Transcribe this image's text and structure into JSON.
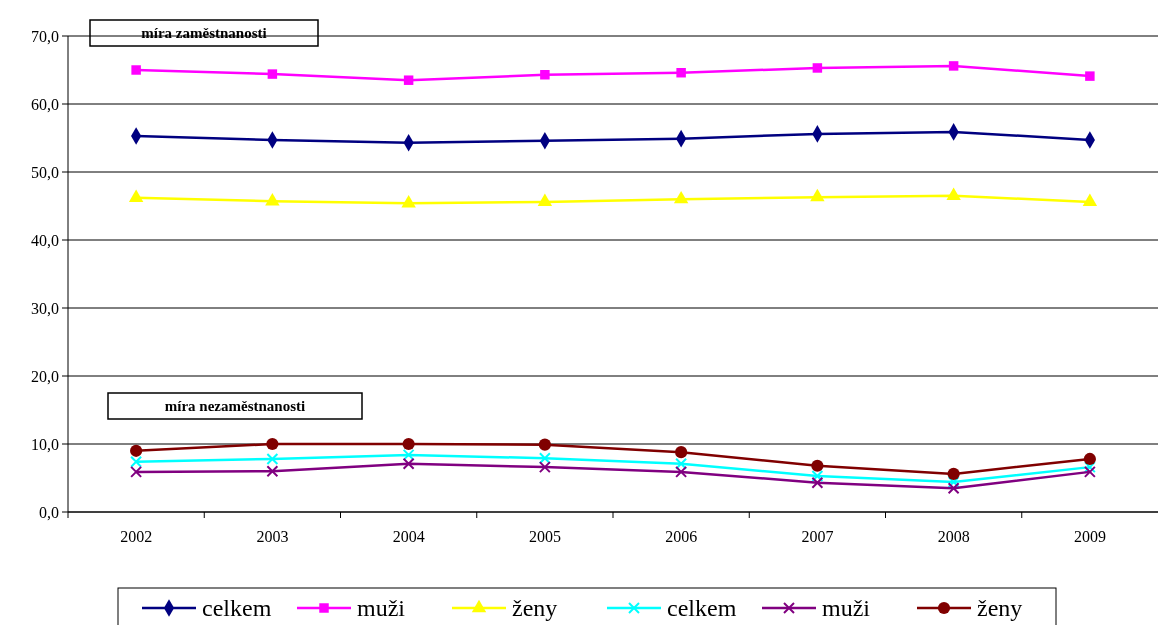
{
  "chart_data": {
    "type": "line",
    "categories": [
      "2002",
      "2003",
      "2004",
      "2005",
      "2006",
      "2007",
      "2008",
      "2009"
    ],
    "ylim": [
      0,
      70
    ],
    "yticks": [
      {
        "value": 0,
        "label": "0,0"
      },
      {
        "value": 10,
        "label": "10,0"
      },
      {
        "value": 20,
        "label": "20,0"
      },
      {
        "value": 30,
        "label": "30,0"
      },
      {
        "value": 40,
        "label": "40,0"
      },
      {
        "value": 50,
        "label": "50,0"
      },
      {
        "value": 60,
        "label": "60,0"
      },
      {
        "value": 70,
        "label": "70,0"
      }
    ],
    "grid": "y",
    "legend": "bottom",
    "annotations": [
      "míra zaměstnanosti",
      "míra nezaměstnanosti"
    ],
    "series": [
      {
        "name": "celkem",
        "color": "#000080",
        "marker": "diamond",
        "values": [
          55.3,
          54.7,
          54.3,
          54.6,
          54.9,
          55.6,
          55.9,
          54.7
        ]
      },
      {
        "name": "muži",
        "color": "#ff00ff",
        "marker": "square",
        "values": [
          65.0,
          64.4,
          63.5,
          64.3,
          64.6,
          65.3,
          65.6,
          64.1
        ]
      },
      {
        "name": "ženy",
        "color": "#ffff00",
        "marker": "triangle",
        "values": [
          46.2,
          45.7,
          45.4,
          45.6,
          46.0,
          46.3,
          46.5,
          45.6
        ]
      },
      {
        "name": "celkem",
        "color": "#00ffff",
        "marker": "cross",
        "values": [
          7.4,
          7.8,
          8.4,
          7.9,
          7.1,
          5.3,
          4.4,
          6.6
        ]
      },
      {
        "name": "muži",
        "color": "#800080",
        "marker": "cross",
        "values": [
          5.9,
          6.0,
          7.1,
          6.6,
          5.9,
          4.3,
          3.5,
          5.9
        ]
      },
      {
        "name": "ženy",
        "color": "#800000",
        "marker": "circle",
        "values": [
          9.0,
          10.0,
          10.0,
          9.9,
          8.8,
          6.8,
          5.6,
          7.8
        ]
      }
    ]
  }
}
